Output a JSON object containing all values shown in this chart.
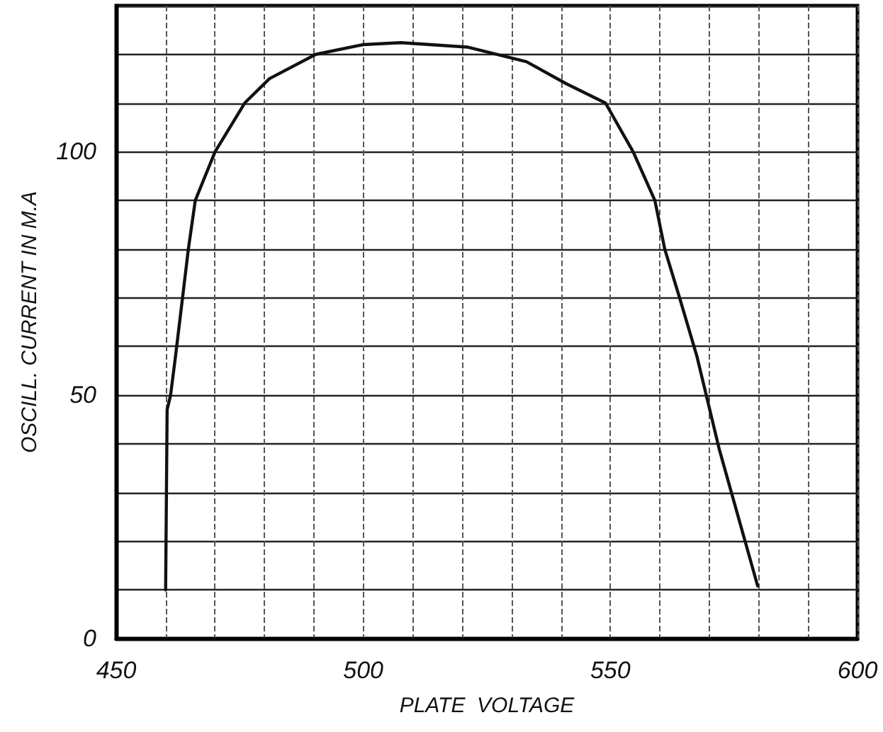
{
  "chart_data": {
    "type": "line",
    "xlabel": "PLATE  VOLTAGE",
    "ylabel": "OSCILL. CURRENT IN M.A",
    "x": [
      460,
      460.3,
      461,
      462,
      464.6,
      466,
      470,
      476,
      481,
      490.4,
      500,
      507.6,
      521,
      533,
      541,
      549,
      554.6,
      559,
      561,
      564,
      567.5,
      572,
      579.8
    ],
    "series": [
      {
        "color": "#111111",
        "values": [
          10,
          47,
          50,
          58,
          80,
          90,
          100,
          110,
          115,
          120,
          122,
          122.4,
          121.5,
          118.5,
          114,
          110,
          100,
          90,
          80,
          70,
          58,
          39,
          10.8
        ]
      }
    ],
    "xlim": [
      450,
      600
    ],
    "ylim": [
      0,
      130
    ],
    "xticks": [
      450,
      {
        "value": 460,
        "label": null
      },
      {
        "value": 470,
        "label": null
      },
      {
        "value": 480,
        "label": null
      },
      {
        "value": 490,
        "label": null
      },
      500,
      {
        "value": 510,
        "label": null
      },
      {
        "value": 520,
        "label": null
      },
      {
        "value": 530,
        "label": null
      },
      {
        "value": 540,
        "label": null
      },
      550,
      {
        "value": 560,
        "label": null
      },
      {
        "value": 570,
        "label": null
      },
      {
        "value": 580,
        "label": null
      },
      {
        "value": 590,
        "label": null
      },
      600
    ],
    "yticks": [
      0,
      {
        "value": 10,
        "label": null
      },
      {
        "value": 20,
        "label": null
      },
      {
        "value": 30,
        "label": null
      },
      {
        "value": 40,
        "label": null
      },
      50,
      {
        "value": 60,
        "label": null
      },
      {
        "value": 70,
        "label": null
      },
      {
        "value": 80,
        "label": null
      },
      {
        "value": 90,
        "label": null
      },
      100,
      {
        "value": 110,
        "label": null
      },
      {
        "value": 120,
        "label": null
      },
      {
        "value": 130,
        "label": null
      }
    ],
    "grid": true,
    "marker": "none",
    "line_style": "solid"
  }
}
